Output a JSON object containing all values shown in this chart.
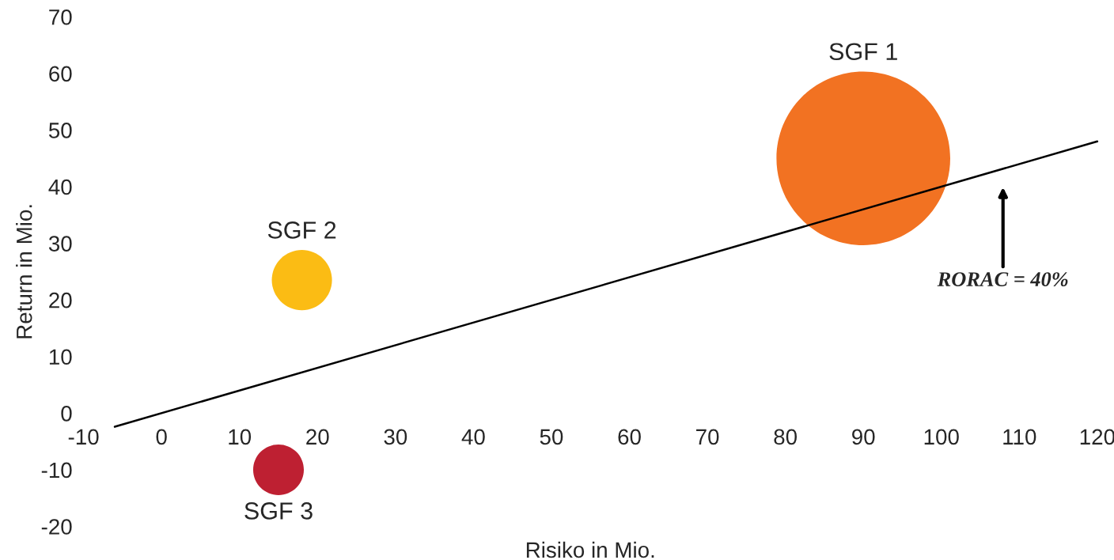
{
  "chart_data": {
    "type": "bubble",
    "xlabel": "Risiko in Mio.",
    "ylabel": "Return in Mio.",
    "xlim": [
      -10,
      120
    ],
    "xticks": [
      -10,
      0,
      10,
      20,
      30,
      40,
      50,
      60,
      70,
      80,
      90,
      100,
      110,
      120
    ],
    "ylim": [
      -20,
      70
    ],
    "yticks": [
      -20,
      -10,
      0,
      10,
      20,
      30,
      40,
      50,
      60,
      70
    ],
    "grid": false,
    "legend": false,
    "series": [
      {
        "name": "SGF 1",
        "color": "#f27222",
        "x": [
          90
        ],
        "values": [
          45
        ],
        "sizes": [
          1
        ]
      },
      {
        "name": "SGF 2",
        "color": "#fbbc14",
        "x": [
          18
        ],
        "values": [
          23.5
        ],
        "sizes": [
          0.12
        ]
      },
      {
        "name": "SGF 3",
        "color": "#be2032",
        "x": [
          15
        ],
        "values": [
          -10
        ],
        "sizes": [
          0.085
        ]
      },
      {
        "type": "line",
        "color": "#000000",
        "x": [
          -6,
          120
        ],
        "values": [
          -2.4,
          48
        ]
      }
    ],
    "annotations": [
      "RORAC = 40%"
    ]
  }
}
